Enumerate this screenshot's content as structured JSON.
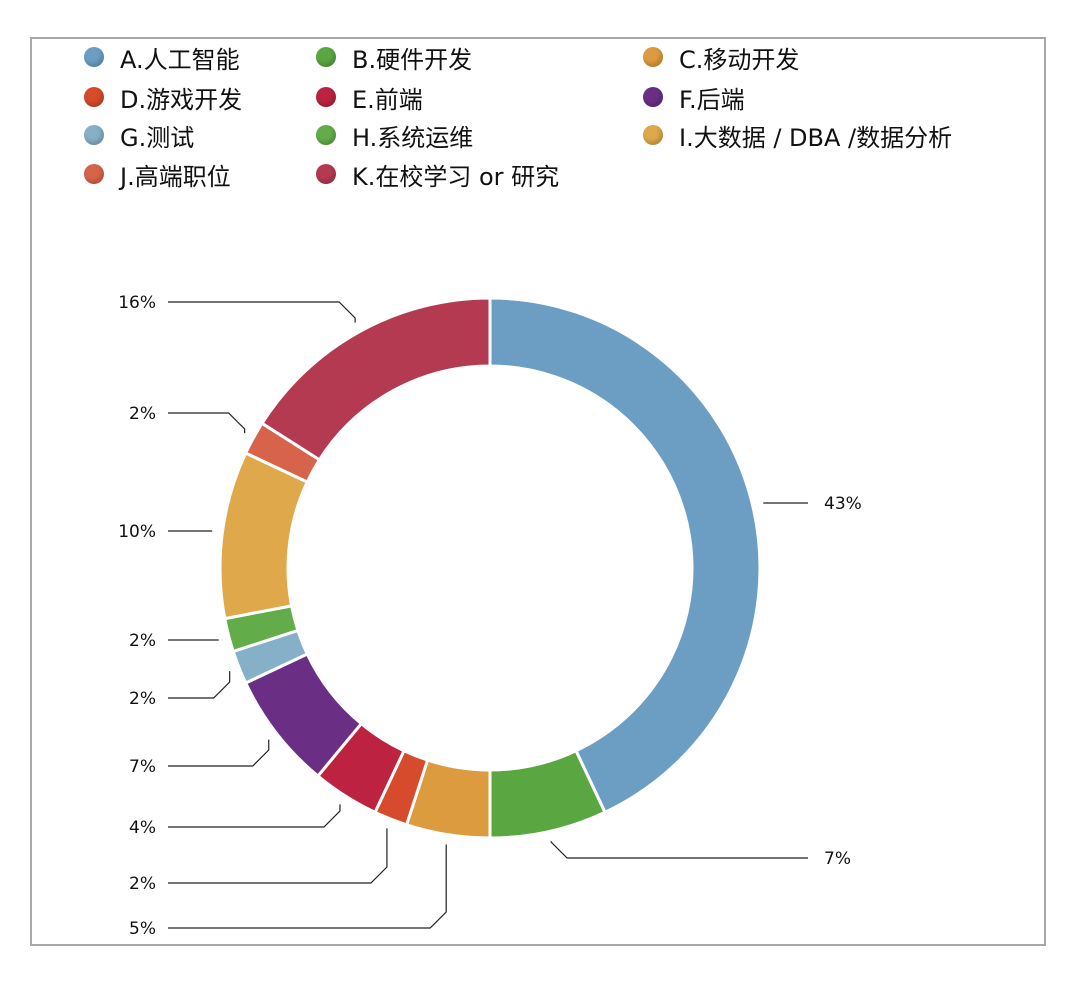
{
  "chart_data": {
    "type": "pie",
    "title": "",
    "series": [
      {
        "name": "A.人工智能",
        "value": 43,
        "label": "43%",
        "color": "#6c9ec3"
      },
      {
        "name": "B.硬件开发",
        "value": 7,
        "label": "7%",
        "color": "#5aa640"
      },
      {
        "name": "C.移动开发",
        "value": 5,
        "label": "5%",
        "color": "#dc9b3e"
      },
      {
        "name": "D.游戏开发",
        "value": 2,
        "label": "2%",
        "color": "#d54b2b"
      },
      {
        "name": "E.前端",
        "value": 4,
        "label": "4%",
        "color": "#bd2340"
      },
      {
        "name": "F.后端",
        "value": 7,
        "label": "7%",
        "color": "#6a2f84"
      },
      {
        "name": "G.测试",
        "value": 2,
        "label": "2%",
        "color": "#86afc8"
      },
      {
        "name": "H.系统运维",
        "value": 2,
        "label": "2%",
        "color": "#62ad4a"
      },
      {
        "name": "I.大数据 / DBA /数据分析",
        "value": 10,
        "label": "10%",
        "color": "#dfa84a"
      },
      {
        "name": "J.高端职位",
        "value": 2,
        "label": "2%",
        "color": "#d8634b"
      },
      {
        "name": "K.在校学习 or 研究",
        "value": 16,
        "label": "16%",
        "color": "#b43a52"
      }
    ],
    "legend_position": "top",
    "donut": true
  }
}
